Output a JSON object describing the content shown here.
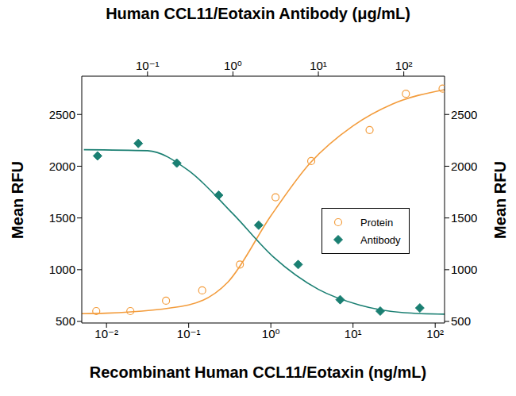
{
  "chart_data": {
    "type": "scatter",
    "x_label": "Recombinant Human CCL11/Eotaxin (ng/mL)",
    "x2_label": "Human CCL11/Eotaxin Antibody (μg/mL)",
    "y_label": "Mean RFU",
    "y2_label": "Mean RFU",
    "log": "x",
    "grid": false,
    "legend": "right",
    "xlim": [
      0.005,
      130
    ],
    "xticks": [
      {
        "value": 0.01,
        "label": "10⁻²"
      },
      {
        "value": 0.1,
        "label": "10⁻¹"
      },
      {
        "value": 1,
        "label": "10⁰"
      },
      {
        "value": 10,
        "label": "10¹"
      },
      {
        "value": 100,
        "label": "10²"
      }
    ],
    "x2lim": [
      0.017,
      300
    ],
    "x2ticks": [
      {
        "value": 0.1,
        "label": "10⁻¹"
      },
      {
        "value": 1,
        "label": "10⁰"
      },
      {
        "value": 10,
        "label": "10¹"
      },
      {
        "value": 100,
        "label": "10²"
      }
    ],
    "ylim": [
      485,
      2870
    ],
    "yticks": [
      500,
      1000,
      1500,
      2000,
      2500
    ],
    "y2lim": [
      485,
      2870
    ],
    "y2ticks": [
      500,
      1000,
      1500,
      2000,
      2500
    ],
    "series": [
      {
        "name": "Protein",
        "color": "#f39c3c",
        "marker": "circle_open",
        "x": [
          0.0075,
          0.0195,
          0.053,
          0.146,
          0.42,
          1.14,
          3.1,
          15.9,
          44,
          123
        ],
        "values": [
          600,
          600,
          700,
          800,
          1050,
          1700,
          2050,
          2350,
          2700,
          2750
        ],
        "fit": {
          "x": [
            0.005,
            0.01,
            0.1,
            0.3,
            1,
            3,
            10,
            30,
            130
          ],
          "values": [
            575,
            580,
            660,
            880,
            1520,
            2030,
            2390,
            2600,
            2740
          ]
        }
      },
      {
        "name": "Antibody",
        "color": "#1a7f72",
        "marker": "diamond",
        "axis": "y2",
        "x": [
          0.026,
          0.078,
          0.22,
          0.68,
          2.0,
          5.8,
          18,
          53,
          154
        ],
        "values": [
          2100,
          2220,
          2030,
          1720,
          1430,
          1050,
          710,
          600,
          630
        ],
        "fit": {
          "x": [
            0.018,
            0.1,
            0.3,
            1,
            3,
            10,
            30,
            100,
            300
          ],
          "values": [
            2160,
            2150,
            1960,
            1540,
            1120,
            810,
            660,
            585,
            570
          ]
        }
      }
    ]
  }
}
